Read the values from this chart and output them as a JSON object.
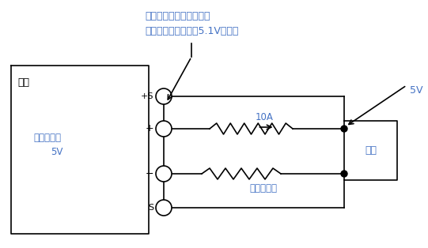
{
  "ann_line1": "電線による電圧降下で、",
  "ann_line2": "出力端子間の電圧は5.1Vとなる",
  "label_dengen": "電源",
  "label_shutsuryoku_1": "出力設定値",
  "label_shutsuryoku_2": "5V",
  "label_fuka": "負荷",
  "label_10A": "10A",
  "label_5V": "5V",
  "label_teiko": "電線の抵抗",
  "label_plusS": "+S",
  "label_plus": "+",
  "label_minus": "−",
  "label_S": "S",
  "text_color_blue": "#4472C4",
  "text_color_black": "#000000",
  "line_color": "#000000",
  "bg_color": "#ffffff"
}
